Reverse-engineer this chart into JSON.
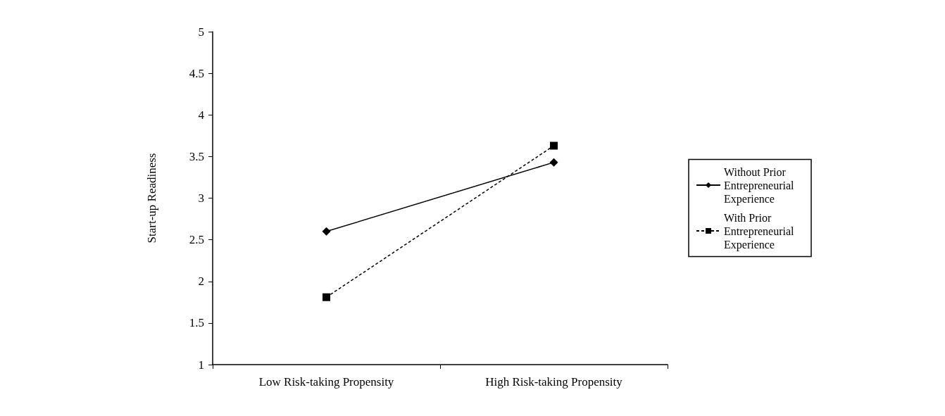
{
  "chart_data": {
    "type": "line",
    "ylabel": "Start-up Readiness",
    "categories": [
      "Low Risk-taking Propensity",
      "High Risk-taking Propensity"
    ],
    "ylim": [
      1,
      5
    ],
    "yticks": [
      1,
      1.5,
      2,
      2.5,
      3,
      3.5,
      4,
      4.5,
      5
    ],
    "grid": false,
    "legend": "right",
    "series": [
      {
        "name": "Without Prior Entrepreneurial Experience",
        "color": "#000000",
        "values": [
          2.6,
          3.43
        ],
        "marker": "diamond",
        "line_style": "solid"
      },
      {
        "name": "With Prior Entrepreneurial Experience",
        "color": "#000000",
        "values": [
          1.81,
          3.63
        ],
        "marker": "square",
        "line_style": "dashed"
      }
    ]
  }
}
